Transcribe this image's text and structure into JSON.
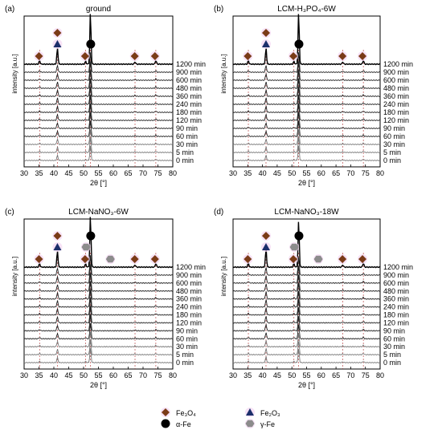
{
  "legend": [
    {
      "id": "fe3o4",
      "text": "Fe₃O₄",
      "marker": "diamond",
      "color": "#7a3b17"
    },
    {
      "id": "fe2o3",
      "text": "Fe₂O₃",
      "marker": "triangle",
      "color": "#1c2f6b"
    },
    {
      "id": "alpha",
      "text": "α-Fe",
      "marker": "circle",
      "color": "#000000"
    },
    {
      "id": "gamma",
      "text": "γ-Fe",
      "marker": "hexagon",
      "color": "#8c8c8c"
    }
  ],
  "chart_data": [
    {
      "type": "line",
      "panel_label": "(a)",
      "title": "ground",
      "xlabel": "2θ [°]",
      "ylabel": "intensity [a.u.]",
      "xlim": [
        30,
        80
      ],
      "x_ticks": [
        30,
        35,
        40,
        45,
        50,
        55,
        60,
        65,
        70,
        75,
        80
      ],
      "series_labels": [
        "1200 min",
        "900 min",
        "600 min",
        "480 min",
        "360 min",
        "240 min",
        "180 min",
        "120 min",
        "90 min",
        "60 min",
        "30 min",
        "5 min",
        "0 min"
      ],
      "peaks": [
        {
          "two_theta": 35.2,
          "height": 0.08,
          "phase": "Fe3O4"
        },
        {
          "two_theta": 41.2,
          "height": 0.35,
          "phase": "Fe3O4"
        },
        {
          "two_theta": 50.7,
          "height": 0.06,
          "phase": "Fe3O4"
        },
        {
          "two_theta": 52.3,
          "height": 1.0,
          "phase": "α-Fe"
        },
        {
          "two_theta": 67.3,
          "height": 0.05,
          "phase": "Fe3O4"
        },
        {
          "two_theta": 74.3,
          "height": 0.08,
          "phase": "Fe3O4"
        }
      ],
      "markers": [
        {
          "x": 35.0,
          "phase": "fe3o4",
          "row": 1
        },
        {
          "x": 41.2,
          "phase": "fe3o4",
          "row": 3
        },
        {
          "x": 41.2,
          "phase": "fe2o3",
          "row": 2
        },
        {
          "x": 50.5,
          "phase": "fe3o4",
          "row": 1
        },
        {
          "x": 52.4,
          "phase": "alpha",
          "row": 2
        },
        {
          "x": 67.2,
          "phase": "fe3o4",
          "row": 1
        },
        {
          "x": 74.0,
          "phase": "fe3o4",
          "row": 1
        }
      ]
    },
    {
      "type": "line",
      "panel_label": "(b)",
      "title": "LCM-H₃PO₄-6W",
      "xlabel": "2θ [°]",
      "ylabel": "intensity [a.u.]",
      "xlim": [
        30,
        80
      ],
      "x_ticks": [
        30,
        35,
        40,
        45,
        50,
        55,
        60,
        65,
        70,
        75,
        80
      ],
      "series_labels": [
        "1200 min",
        "900 min",
        "600 min",
        "480 min",
        "360 min",
        "240 min",
        "180 min",
        "120 min",
        "90 min",
        "60 min",
        "30 min",
        "5 min",
        "0 min"
      ],
      "peaks": [
        {
          "two_theta": 35.2,
          "height": 0.08,
          "phase": "Fe3O4"
        },
        {
          "two_theta": 41.2,
          "height": 0.35,
          "phase": "Fe3O4"
        },
        {
          "two_theta": 50.7,
          "height": 0.06,
          "phase": "Fe3O4"
        },
        {
          "two_theta": 52.3,
          "height": 1.0,
          "phase": "α-Fe"
        },
        {
          "two_theta": 67.3,
          "height": 0.05,
          "phase": "Fe3O4"
        },
        {
          "two_theta": 74.3,
          "height": 0.08,
          "phase": "Fe3O4"
        }
      ],
      "markers": [
        {
          "x": 35.0,
          "phase": "fe3o4",
          "row": 1
        },
        {
          "x": 41.2,
          "phase": "fe3o4",
          "row": 3
        },
        {
          "x": 41.2,
          "phase": "fe2o3",
          "row": 2
        },
        {
          "x": 50.5,
          "phase": "fe3o4",
          "row": 1
        },
        {
          "x": 52.4,
          "phase": "alpha",
          "row": 2
        },
        {
          "x": 67.2,
          "phase": "fe3o4",
          "row": 1
        },
        {
          "x": 74.0,
          "phase": "fe3o4",
          "row": 1
        }
      ]
    },
    {
      "type": "line",
      "panel_label": "(c)",
      "title": "LCM-NaNO₃-6W",
      "xlabel": "2θ [°]",
      "ylabel": "intensity [a.u.]",
      "xlim": [
        30,
        80
      ],
      "x_ticks": [
        30,
        35,
        40,
        45,
        50,
        55,
        60,
        65,
        70,
        75,
        80
      ],
      "series_labels": [
        "1200 min",
        "900 min",
        "600 min",
        "480 min",
        "360 min",
        "240 min",
        "180 min",
        "120 min",
        "90 min",
        "60 min",
        "30 min",
        "5 min",
        "0 min"
      ],
      "peaks": [
        {
          "two_theta": 35.2,
          "height": 0.08,
          "phase": "Fe3O4"
        },
        {
          "two_theta": 41.2,
          "height": 0.35,
          "phase": "Fe3O4"
        },
        {
          "two_theta": 50.7,
          "height": 0.07,
          "phase": "Fe3O4"
        },
        {
          "two_theta": 52.3,
          "height": 1.0,
          "phase": "α-Fe"
        },
        {
          "two_theta": 67.3,
          "height": 0.05,
          "phase": "Fe3O4"
        },
        {
          "two_theta": 74.3,
          "height": 0.08,
          "phase": "Fe3O4"
        }
      ],
      "markers": [
        {
          "x": 35.0,
          "phase": "fe3o4",
          "row": 1
        },
        {
          "x": 41.2,
          "phase": "fe3o4",
          "row": 3
        },
        {
          "x": 41.2,
          "phase": "fe2o3",
          "row": 2
        },
        {
          "x": 50.5,
          "phase": "fe3o4",
          "row": 1
        },
        {
          "x": 50.8,
          "phase": "gamma",
          "row": 2
        },
        {
          "x": 52.4,
          "phase": "alpha",
          "row": 3
        },
        {
          "x": 59.0,
          "phase": "gamma",
          "row": 1
        },
        {
          "x": 67.2,
          "phase": "fe3o4",
          "row": 1
        },
        {
          "x": 74.0,
          "phase": "fe3o4",
          "row": 1
        }
      ]
    },
    {
      "type": "line",
      "panel_label": "(d)",
      "title": "LCM-NaNO₃-18W",
      "xlabel": "2θ [°]",
      "ylabel": "intensity [a.u.]",
      "xlim": [
        30,
        80
      ],
      "x_ticks": [
        30,
        35,
        40,
        45,
        50,
        55,
        60,
        65,
        70,
        75,
        80
      ],
      "series_labels": [
        "1200 min",
        "900 min",
        "600 min",
        "480 min",
        "360 min",
        "240 min",
        "180 min",
        "120 min",
        "90 min",
        "60 min",
        "30 min",
        "5 min",
        "0 min"
      ],
      "peaks": [
        {
          "two_theta": 35.2,
          "height": 0.09,
          "phase": "Fe3O4"
        },
        {
          "two_theta": 41.2,
          "height": 0.4,
          "phase": "Fe3O4"
        },
        {
          "two_theta": 50.7,
          "height": 0.08,
          "phase": "Fe3O4"
        },
        {
          "two_theta": 52.3,
          "height": 0.9,
          "phase": "α-Fe"
        },
        {
          "two_theta": 67.3,
          "height": 0.05,
          "phase": "Fe3O4"
        },
        {
          "two_theta": 74.3,
          "height": 0.09,
          "phase": "Fe3O4"
        }
      ],
      "markers": [
        {
          "x": 35.0,
          "phase": "fe3o4",
          "row": 1
        },
        {
          "x": 41.2,
          "phase": "fe3o4",
          "row": 3
        },
        {
          "x": 41.2,
          "phase": "fe2o3",
          "row": 2
        },
        {
          "x": 50.5,
          "phase": "fe3o4",
          "row": 1
        },
        {
          "x": 50.8,
          "phase": "gamma",
          "row": 2
        },
        {
          "x": 52.4,
          "phase": "alpha",
          "row": 3
        },
        {
          "x": 59.0,
          "phase": "gamma",
          "row": 1
        },
        {
          "x": 67.2,
          "phase": "fe3o4",
          "row": 1
        },
        {
          "x": 74.0,
          "phase": "fe3o4",
          "row": 1
        }
      ]
    }
  ]
}
